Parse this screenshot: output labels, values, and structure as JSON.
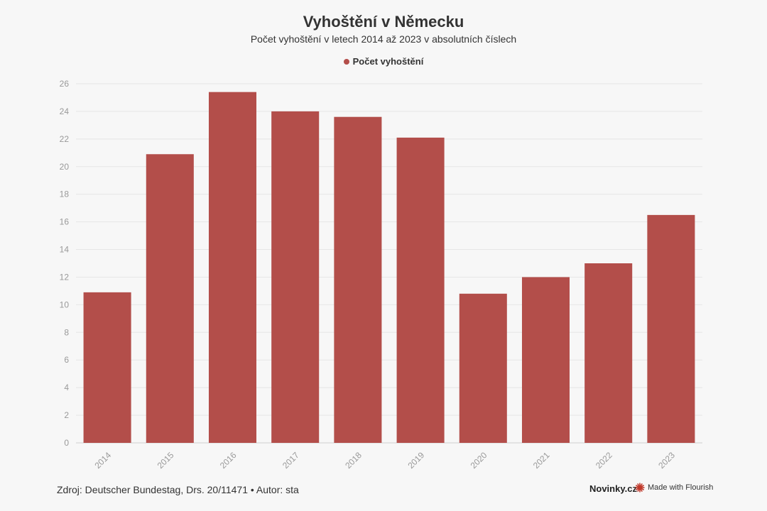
{
  "header": {
    "title": "Vyhoštění v Německu",
    "subtitle": "Počet vyhoštění v letech 2014 až 2023 v absolutních číslech"
  },
  "legend": {
    "label": "Počet vyhoštění",
    "color": "#b34e4a"
  },
  "chart_data": {
    "type": "bar",
    "title": "Vyhoštění v Německu",
    "subtitle": "Počet vyhoštění v letech 2014 až 2023 v absolutních číslech",
    "categories": [
      "2014",
      "2015",
      "2016",
      "2017",
      "2018",
      "2019",
      "2020",
      "2021",
      "2022",
      "2023"
    ],
    "series": [
      {
        "name": "Počet vyhoštění",
        "values": [
          10.9,
          20.9,
          25.4,
          24.0,
          23.6,
          22.1,
          10.8,
          12.0,
          13.0,
          16.5
        ],
        "color": "#b34e4a"
      }
    ],
    "ylim": [
      0,
      26
    ],
    "yticks": [
      0,
      2,
      4,
      6,
      8,
      10,
      12,
      14,
      16,
      18,
      20,
      22,
      24,
      26
    ],
    "grid": true,
    "legend_position": "top-center",
    "xlabel": "",
    "ylabel": ""
  },
  "footer": {
    "source": "Zdroj: Deutscher Bundestag, Drs. 20/11471 • Autor: sta",
    "brand": "Novinky.cz",
    "flourish": "Made with Flourish",
    "flourish_color": "#c0392b"
  }
}
